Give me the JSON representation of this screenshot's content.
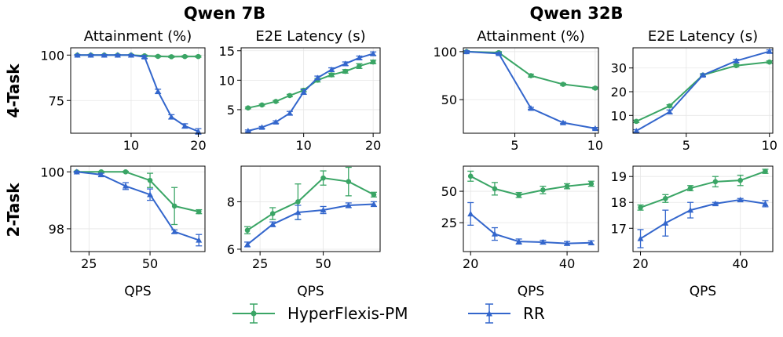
{
  "group_titles": [
    "Qwen 7B",
    "Qwen 32B"
  ],
  "row_labels": [
    "4-Task",
    "2-Task"
  ],
  "legend": [
    {
      "name": "HyperFlexis-PM",
      "color": "#3aa565",
      "marker": "circle"
    },
    {
      "name": "RR",
      "color": "#3366cc",
      "marker": "triangle"
    }
  ],
  "chart_data": [
    {
      "type": "line",
      "title": "Attainment (%)",
      "group": "Qwen 7B",
      "row": "4-Task",
      "xlabel": "",
      "xlim": [
        1,
        21
      ],
      "ylim": [
        57,
        104
      ],
      "xticks": [
        10,
        20
      ],
      "yticks": [
        75,
        100
      ],
      "series": [
        {
          "name": "HyperFlexis-PM",
          "x": [
            2,
            4,
            6,
            8,
            10,
            12,
            14,
            16,
            18,
            20
          ],
          "y": [
            100,
            100,
            100,
            100,
            100,
            99.6,
            99.3,
            99.1,
            99.2,
            99.2
          ],
          "err": [
            0.3,
            0.3,
            0.3,
            0.3,
            0.3,
            0.4,
            0.4,
            0.4,
            0.4,
            0.4
          ]
        },
        {
          "name": "RR",
          "x": [
            2,
            4,
            6,
            8,
            10,
            12,
            14,
            16,
            18,
            20
          ],
          "y": [
            100,
            100,
            100,
            100,
            100,
            99,
            80,
            66,
            61,
            58
          ],
          "err": [
            0.3,
            0.3,
            0.3,
            0.3,
            0.3,
            0.8,
            1.2,
            1.2,
            1.2,
            1.5
          ]
        }
      ]
    },
    {
      "type": "line",
      "title": "E2E Latency (s)",
      "group": "Qwen 7B",
      "row": "4-Task",
      "xlabel": "",
      "xlim": [
        1,
        21
      ],
      "ylim": [
        1,
        15.5
      ],
      "xticks": [
        10,
        20
      ],
      "yticks": [
        5,
        10,
        15
      ],
      "series": [
        {
          "name": "HyperFlexis-PM",
          "x": [
            2,
            4,
            6,
            8,
            10,
            12,
            14,
            16,
            18,
            20
          ],
          "y": [
            5.3,
            5.8,
            6.4,
            7.4,
            8.3,
            10,
            10.9,
            11.5,
            12.4,
            13.1
          ],
          "err": [
            0.15,
            0.15,
            0.15,
            0.2,
            0.25,
            0.3,
            0.3,
            0.3,
            0.4,
            0.3
          ]
        },
        {
          "name": "RR",
          "x": [
            2,
            4,
            6,
            8,
            10,
            12,
            14,
            16,
            18,
            20
          ],
          "y": [
            1.4,
            2,
            2.9,
            4.4,
            8,
            10.4,
            11.8,
            12.8,
            13.8,
            14.5
          ],
          "err": [
            0.15,
            0.15,
            0.2,
            0.3,
            0.4,
            0.3,
            0.3,
            0.3,
            0.3,
            0.3
          ]
        }
      ]
    },
    {
      "type": "line",
      "title": "Attainment (%)",
      "group": "Qwen 32B",
      "row": "4-Task",
      "xlabel": "",
      "xlim": [
        1.8,
        10.2
      ],
      "ylim": [
        15,
        104
      ],
      "xticks": [
        5,
        10
      ],
      "yticks": [
        50,
        100
      ],
      "series": [
        {
          "name": "HyperFlexis-PM",
          "x": [
            2,
            4,
            6,
            8,
            10
          ],
          "y": [
            100,
            99,
            75,
            66,
            62
          ],
          "err": [
            1,
            1,
            1.5,
            1,
            1
          ]
        },
        {
          "name": "RR",
          "x": [
            2,
            4,
            6,
            8,
            10
          ],
          "y": [
            100,
            98,
            41,
            26,
            20
          ],
          "err": [
            1,
            1,
            1,
            1,
            1
          ]
        }
      ]
    },
    {
      "type": "line",
      "title": "E2E Latency (s)",
      "group": "Qwen 32B",
      "row": "4-Task",
      "xlabel": "",
      "xlim": [
        1.8,
        10.2
      ],
      "ylim": [
        2.5,
        38.5
      ],
      "xticks": [
        5,
        10
      ],
      "yticks": [
        10,
        20,
        30
      ],
      "series": [
        {
          "name": "HyperFlexis-PM",
          "x": [
            2,
            4,
            6,
            8,
            10
          ],
          "y": [
            7.5,
            14,
            27,
            31,
            32.5
          ],
          "err": [
            0.5,
            0.5,
            0.5,
            0.5,
            0.5
          ]
        },
        {
          "name": "RR",
          "x": [
            2,
            4,
            6,
            8,
            10
          ],
          "y": [
            3.5,
            11.5,
            27,
            33,
            37
          ],
          "err": [
            0.5,
            0.8,
            0.5,
            0.6,
            0.6
          ]
        }
      ]
    },
    {
      "type": "line",
      "title": "",
      "group": "Qwen 7B",
      "row": "2-Task",
      "xlabel": "QPS",
      "xlim": [
        17.5,
        72.5
      ],
      "ylim": [
        97.2,
        100.2
      ],
      "xticks": [
        25,
        50
      ],
      "yticks": [
        98,
        100
      ],
      "series": [
        {
          "name": "HyperFlexis-PM",
          "x": [
            20,
            30,
            40,
            50,
            60,
            70
          ],
          "y": [
            100,
            100,
            100,
            99.7,
            98.8,
            98.6
          ],
          "err": [
            0.02,
            0.02,
            0.02,
            0.25,
            0.65,
            0.07
          ]
        },
        {
          "name": "RR",
          "x": [
            20,
            30,
            40,
            50,
            60,
            70
          ],
          "y": [
            100,
            99.9,
            99.5,
            99.2,
            97.9,
            97.6
          ],
          "err": [
            0.02,
            0.05,
            0.12,
            0.2,
            0.06,
            0.2
          ]
        }
      ]
    },
    {
      "type": "line",
      "title": "",
      "group": "Qwen 7B",
      "row": "2-Task",
      "xlabel": "QPS",
      "xlim": [
        17.5,
        72.5
      ],
      "ylim": [
        5.9,
        9.5
      ],
      "xticks": [
        25,
        50
      ],
      "yticks": [
        6,
        8
      ],
      "series": [
        {
          "name": "HyperFlexis-PM",
          "x": [
            20,
            30,
            40,
            50,
            60,
            70
          ],
          "y": [
            6.8,
            7.5,
            8,
            9,
            8.85,
            8.3
          ],
          "err": [
            0.15,
            0.25,
            0.75,
            0.3,
            0.6,
            0.1
          ]
        },
        {
          "name": "RR",
          "x": [
            20,
            30,
            40,
            50,
            60,
            70
          ],
          "y": [
            6.2,
            7.05,
            7.55,
            7.65,
            7.85,
            7.9
          ],
          "err": [
            0.1,
            0.1,
            0.3,
            0.15,
            0.1,
            0.1
          ]
        }
      ]
    },
    {
      "type": "line",
      "title": "",
      "group": "Qwen 32B",
      "row": "2-Task",
      "xlabel": "QPS",
      "xlim": [
        18.5,
        46.5
      ],
      "ylim": [
        2,
        70
      ],
      "xticks": [
        20,
        40
      ],
      "yticks": [
        25,
        50
      ],
      "series": [
        {
          "name": "HyperFlexis-PM",
          "x": [
            20,
            25,
            30,
            35,
            40,
            45
          ],
          "y": [
            62,
            52,
            47,
            51,
            54,
            56
          ],
          "err": [
            4,
            5,
            2,
            3,
            2,
            2
          ]
        },
        {
          "name": "RR",
          "x": [
            20,
            25,
            30,
            35,
            40,
            45
          ],
          "y": [
            32,
            16,
            10,
            9.5,
            8.5,
            9
          ],
          "err": [
            9,
            5,
            2,
            1.5,
            1.5,
            1.5
          ]
        }
      ]
    },
    {
      "type": "line",
      "title": "",
      "group": "Qwen 32B",
      "row": "2-Task",
      "xlabel": "QPS",
      "xlim": [
        18.5,
        46.5
      ],
      "ylim": [
        16.1,
        19.4
      ],
      "xticks": [
        20,
        40
      ],
      "yticks": [
        17,
        18,
        19
      ],
      "series": [
        {
          "name": "HyperFlexis-PM",
          "x": [
            20,
            25,
            30,
            35,
            40,
            45
          ],
          "y": [
            17.8,
            18.15,
            18.55,
            18.8,
            18.85,
            19.2
          ],
          "err": [
            0.1,
            0.15,
            0.1,
            0.2,
            0.2,
            0.08
          ]
        },
        {
          "name": "RR",
          "x": [
            20,
            25,
            30,
            35,
            40,
            45
          ],
          "y": [
            16.6,
            17.2,
            17.7,
            17.95,
            18.1,
            17.95
          ],
          "err": [
            0.35,
            0.5,
            0.3,
            0.05,
            0.05,
            0.12
          ]
        }
      ]
    }
  ]
}
